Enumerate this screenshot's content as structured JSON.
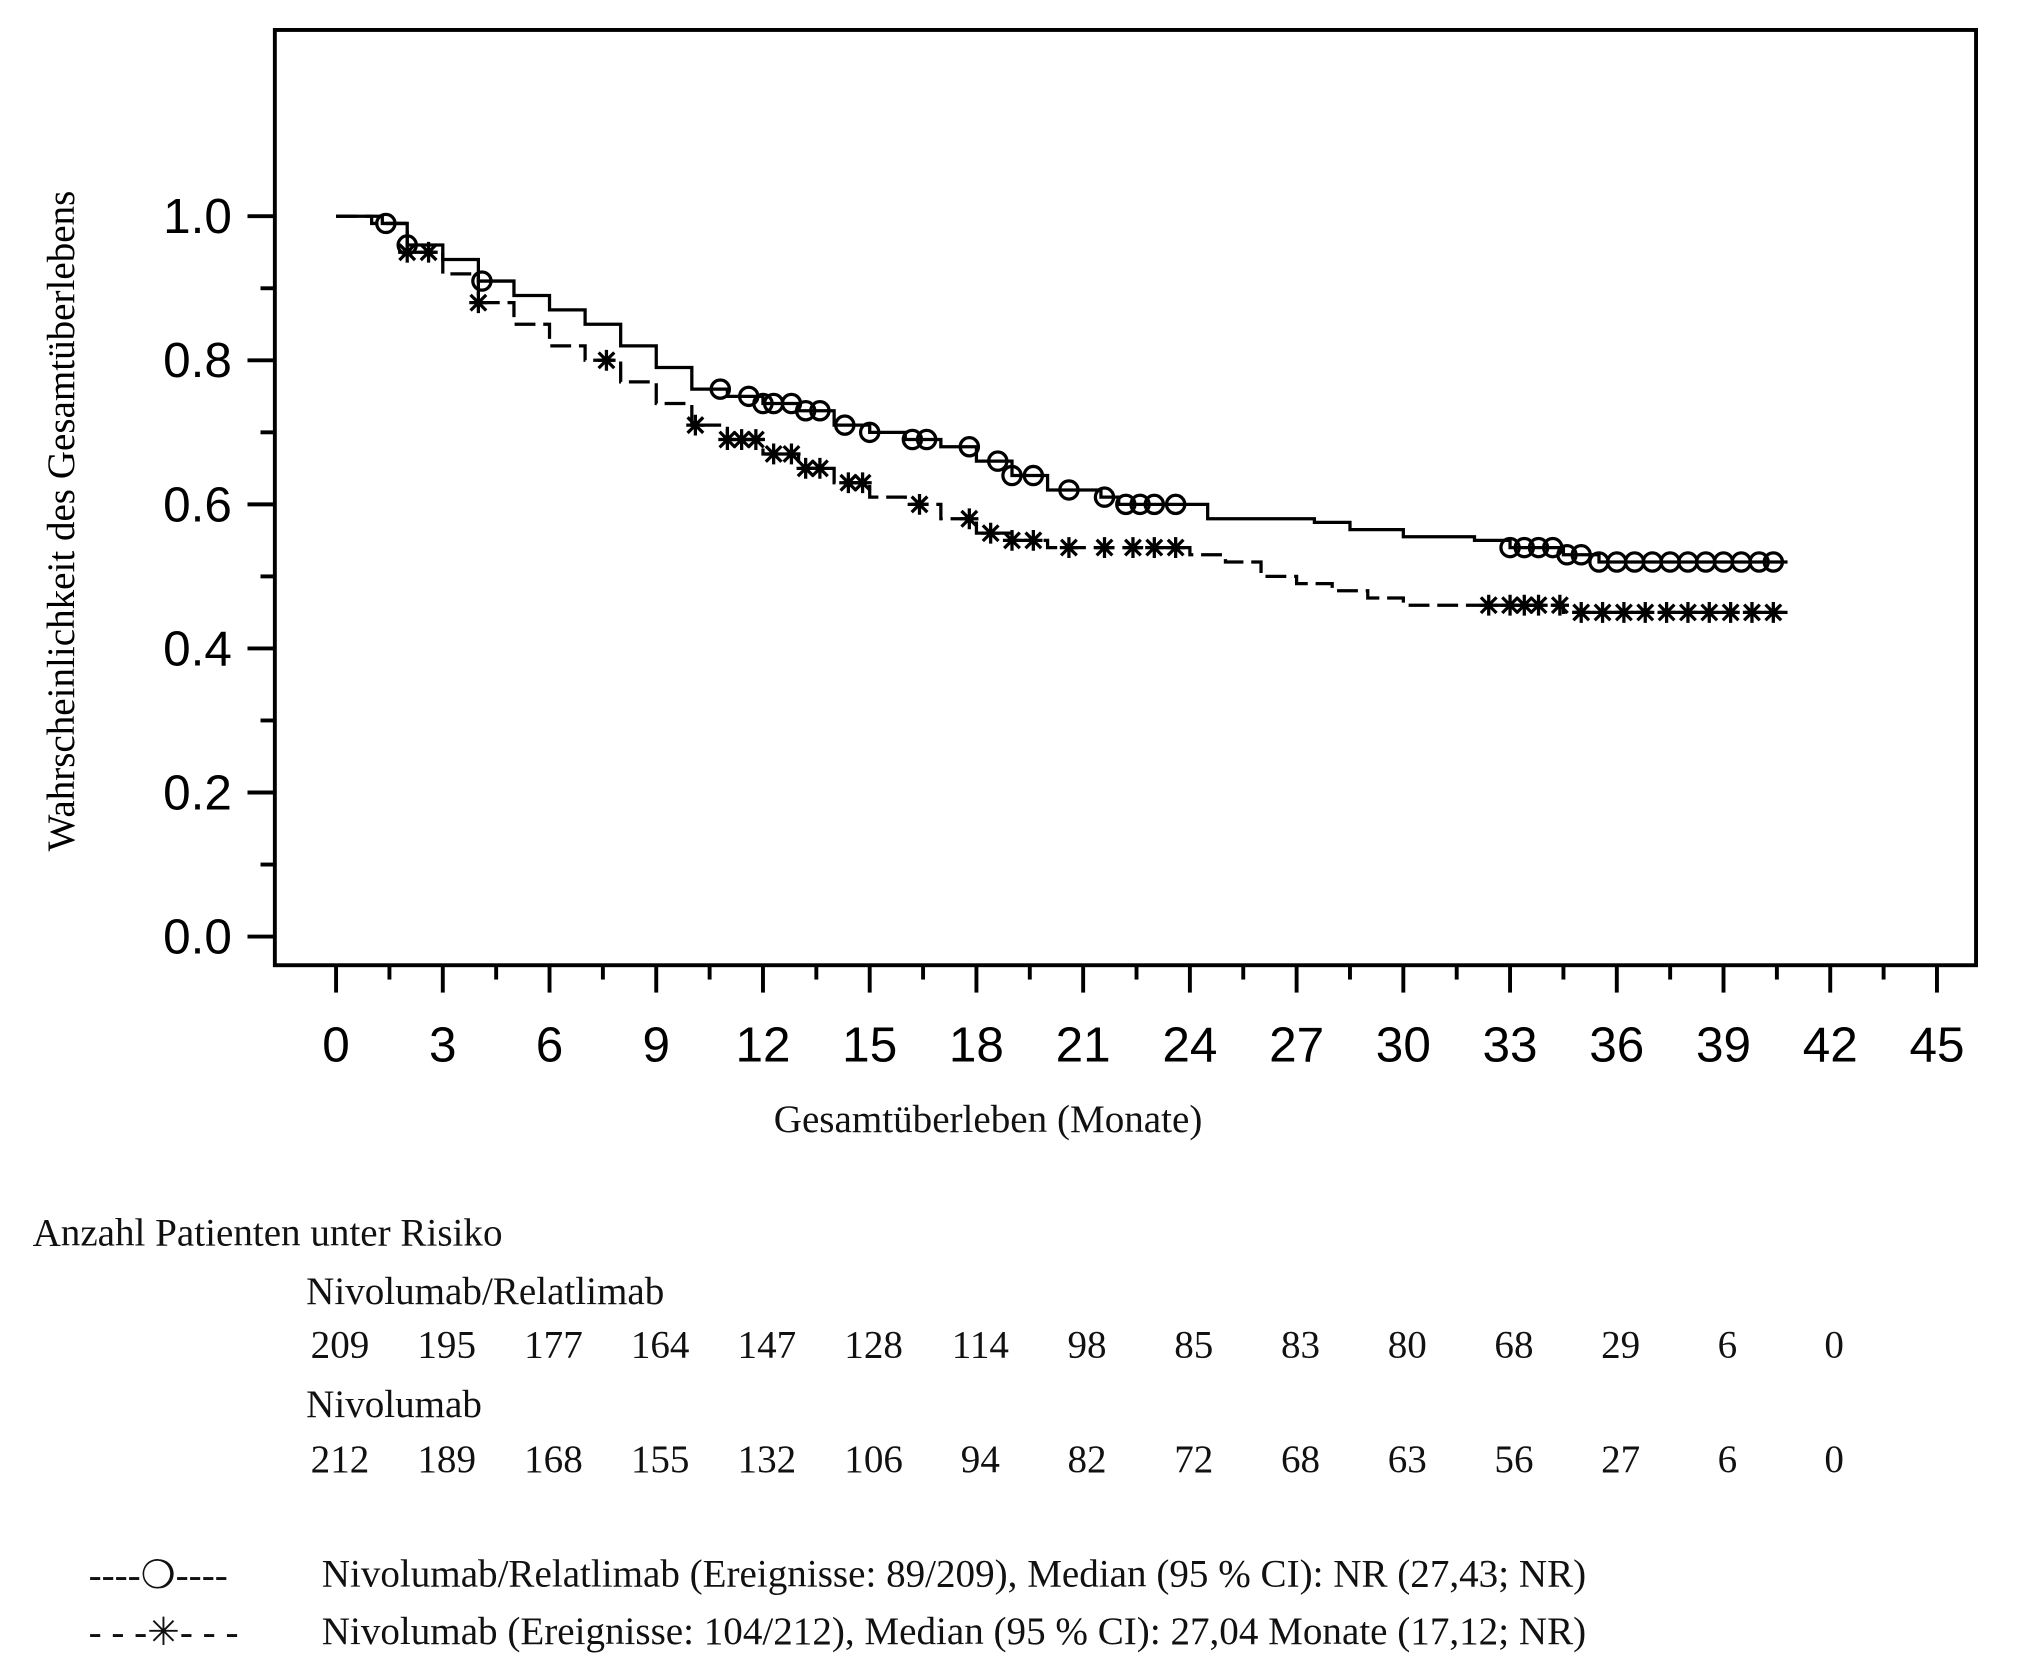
{
  "chart_data": {
    "type": "line",
    "subtype": "kaplan-meier",
    "xlabel": "Gesamtüberleben (Monate)",
    "ylabel": "Wahrscheinlichkeit des Gesamtüberlebens",
    "xlim": [
      0,
      45
    ],
    "ylim": [
      0,
      1
    ],
    "xticks": [
      0,
      3,
      6,
      9,
      12,
      15,
      18,
      21,
      24,
      27,
      30,
      33,
      36,
      39,
      42,
      45
    ],
    "yticks": [
      "0.0",
      "0.2",
      "0.4",
      "0.6",
      "0.8",
      "1.0"
    ],
    "series": [
      {
        "name": "Nivolumab/Relatlimab",
        "marker": "circle",
        "dash": false,
        "steps": [
          [
            0,
            1
          ],
          [
            1.3,
            0.99
          ],
          [
            2,
            0.96
          ],
          [
            3,
            0.94
          ],
          [
            4,
            0.91
          ],
          [
            5,
            0.89
          ],
          [
            6,
            0.87
          ],
          [
            7,
            0.85
          ],
          [
            8,
            0.82
          ],
          [
            9,
            0.79
          ],
          [
            10,
            0.76
          ],
          [
            11,
            0.75
          ],
          [
            12,
            0.74
          ],
          [
            13,
            0.73
          ],
          [
            14,
            0.71
          ],
          [
            15,
            0.7
          ],
          [
            16,
            0.69
          ],
          [
            17,
            0.68
          ],
          [
            18,
            0.66
          ],
          [
            19,
            0.64
          ],
          [
            20,
            0.62
          ],
          [
            21.5,
            0.61
          ],
          [
            22,
            0.6
          ],
          [
            24.5,
            0.58
          ],
          [
            27.5,
            0.575
          ],
          [
            28.5,
            0.565
          ],
          [
            30,
            0.555
          ],
          [
            32,
            0.55
          ],
          [
            33,
            0.54
          ],
          [
            34.5,
            0.53
          ],
          [
            35.5,
            0.52
          ],
          [
            40.8,
            0.52
          ]
        ],
        "censored": [
          1.4,
          2,
          4.1,
          10.8,
          11.6,
          12,
          12.3,
          12.8,
          13.2,
          13.6,
          14.3,
          15,
          16.2,
          16.6,
          17.8,
          18.6,
          19,
          19.6,
          20.6,
          21.6,
          22.2,
          22.6,
          23,
          23.6,
          33,
          33.4,
          33.8,
          34.2,
          34.6,
          35,
          35.5,
          36,
          36.5,
          37,
          37.5,
          38,
          38.5,
          39,
          39.5,
          40,
          40.4
        ]
      },
      {
        "name": "Nivolumab",
        "marker": "asterisk",
        "dash": true,
        "steps": [
          [
            0,
            1
          ],
          [
            1,
            0.99
          ],
          [
            2,
            0.95
          ],
          [
            3,
            0.92
          ],
          [
            4,
            0.88
          ],
          [
            5,
            0.85
          ],
          [
            6,
            0.82
          ],
          [
            7,
            0.8
          ],
          [
            8,
            0.77
          ],
          [
            9,
            0.74
          ],
          [
            10,
            0.71
          ],
          [
            11,
            0.69
          ],
          [
            12,
            0.67
          ],
          [
            13,
            0.65
          ],
          [
            14,
            0.63
          ],
          [
            15,
            0.61
          ],
          [
            16,
            0.6
          ],
          [
            17,
            0.58
          ],
          [
            18,
            0.56
          ],
          [
            19,
            0.55
          ],
          [
            20,
            0.54
          ],
          [
            22,
            0.54
          ],
          [
            24,
            0.53
          ],
          [
            25,
            0.52
          ],
          [
            26,
            0.5
          ],
          [
            27,
            0.49
          ],
          [
            28,
            0.48
          ],
          [
            29,
            0.47
          ],
          [
            30,
            0.46
          ],
          [
            33,
            0.46
          ],
          [
            34.5,
            0.45
          ],
          [
            40.8,
            0.45
          ]
        ],
        "censored": [
          2,
          2.6,
          4,
          7.6,
          10.1,
          11,
          11.4,
          11.8,
          12.3,
          12.8,
          13.2,
          13.6,
          14.4,
          14.8,
          16.4,
          17.8,
          18.4,
          19,
          19.6,
          20.6,
          21.6,
          22.4,
          23,
          23.6,
          32.4,
          33,
          33.4,
          33.8,
          34.4,
          35,
          35.6,
          36.2,
          36.8,
          37.4,
          38,
          38.6,
          39.2,
          39.8,
          40.4
        ]
      }
    ],
    "risk_table": {
      "title": "Anzahl Patienten unter Risiko",
      "groups": [
        {
          "name": "Nivolumab/Relatlimab",
          "values": [
            "209",
            "195",
            "177",
            "164",
            "147",
            "128",
            "114",
            "98",
            "85",
            "83",
            "80",
            "68",
            "29",
            "6",
            "0"
          ]
        },
        {
          "name": "Nivolumab",
          "values": [
            "212",
            "189",
            "168",
            "155",
            "132",
            "106",
            "94",
            "82",
            "72",
            "68",
            "63",
            "56",
            "27",
            "6",
            "0"
          ]
        }
      ]
    },
    "legend": [
      {
        "symbol": "----❍----",
        "label": "Nivolumab/Relatlimab (Ereignisse: 89/209), Median (95 % CI): NR (27,43; NR)"
      },
      {
        "symbol": "- - -✳- - -",
        "label": "Nivolumab (Ereignisse: 104/212), Median (95 % CI): 27,04 Monate (17,12; NR)"
      }
    ]
  }
}
